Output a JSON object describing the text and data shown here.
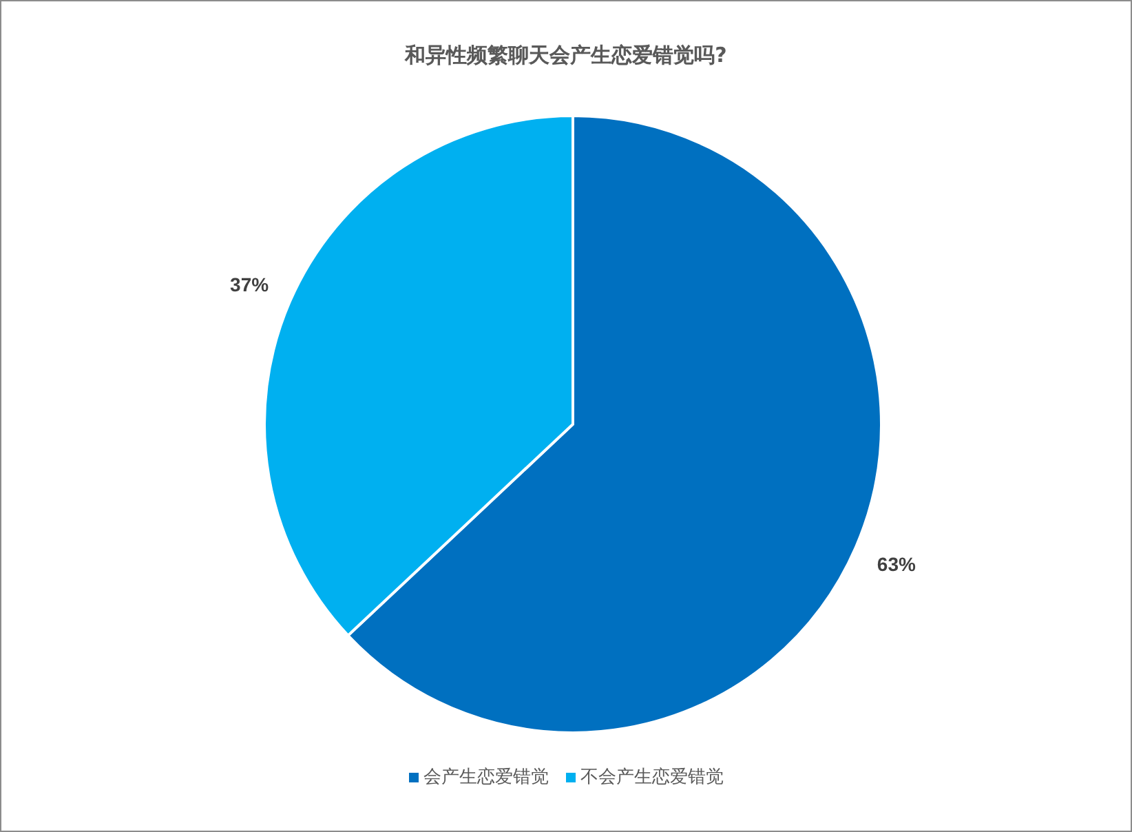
{
  "chart_data": {
    "type": "pie",
    "title": "和异性频繁聊天会产生恋爱错觉吗?",
    "categories": [
      "会产生恋爱错觉",
      "不会产生恋爱错觉"
    ],
    "values": [
      63,
      37
    ],
    "value_labels": [
      "63%",
      "37%"
    ],
    "colors": [
      "#0070c0",
      "#00b0f0"
    ],
    "legend": "bottom"
  }
}
